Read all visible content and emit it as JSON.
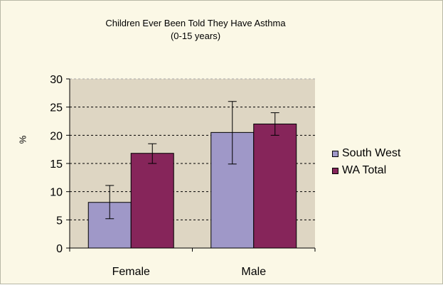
{
  "chart_data": {
    "type": "bar",
    "title": "Children Ever Been Told They Have Asthma",
    "subtitle": "(0-15 years)",
    "xlabel": "",
    "ylabel": "%",
    "ylim": [
      0,
      30
    ],
    "yticks": [
      0,
      5,
      10,
      15,
      20,
      25,
      30
    ],
    "grid": true,
    "legend_position": "right",
    "categories": [
      "Female",
      "Male"
    ],
    "series": [
      {
        "name": "South West",
        "color": "#9F98C8",
        "values": [
          8.1,
          20.5
        ],
        "error_low": [
          5.2,
          14.9
        ],
        "error_high": [
          11.1,
          26.0
        ]
      },
      {
        "name": "WA Total",
        "color": "#86255A",
        "values": [
          16.8,
          22.0
        ],
        "error_low": [
          15.0,
          20.0
        ],
        "error_high": [
          18.5,
          24.0
        ]
      }
    ],
    "colors": {
      "plot_background": "#DED6C3",
      "panel_background": "#FBF8E6",
      "gridline": "#000000"
    }
  }
}
